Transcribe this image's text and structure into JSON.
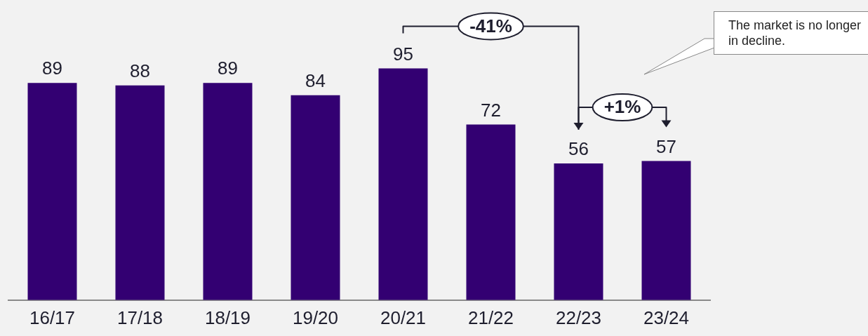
{
  "chart_data": {
    "type": "bar",
    "categories": [
      "16/17",
      "17/18",
      "18/19",
      "19/20",
      "20/21",
      "21/22",
      "22/23",
      "23/24"
    ],
    "values": [
      89,
      88,
      89,
      84,
      95,
      72,
      56,
      57
    ],
    "color": "#330072",
    "data_labels": true,
    "annotations": [
      "-41%",
      "+1%",
      "The market is no longer in decline."
    ]
  }
}
